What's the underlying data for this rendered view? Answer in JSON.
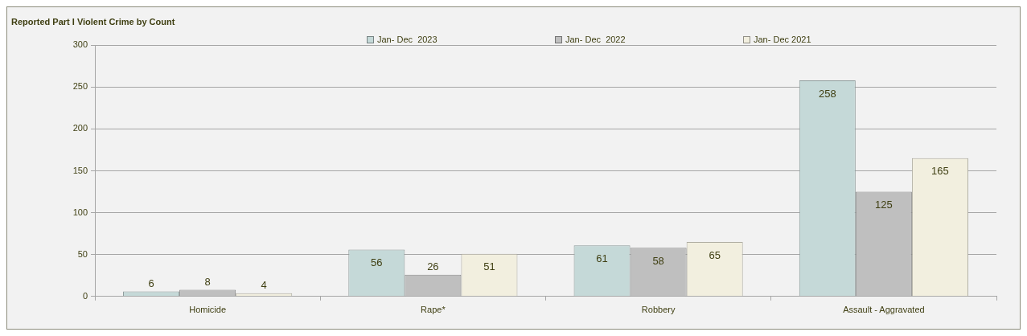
{
  "chart_data": {
    "type": "bar",
    "title": "Reported Part I Violent Crime by Count",
    "categories": [
      "Homicide",
      "Rape*",
      "Robbery",
      "Assault - Aggravated"
    ],
    "series": [
      {
        "name": "Jan- Dec  2023",
        "color": "#c5d9d8",
        "values": [
          6,
          56,
          61,
          258
        ]
      },
      {
        "name": "Jan- Dec  2022",
        "color": "#bfbfbf",
        "values": [
          8,
          26,
          58,
          125
        ]
      },
      {
        "name": "Jan- Dec 2021",
        "color": "#f2efdf",
        "values": [
          4,
          51,
          65,
          165
        ]
      }
    ],
    "ylim": [
      0,
      300
    ],
    "yticks": [
      0,
      50,
      100,
      150,
      200,
      250,
      300
    ],
    "grid": "y",
    "legend": "top",
    "data_labels": true
  }
}
